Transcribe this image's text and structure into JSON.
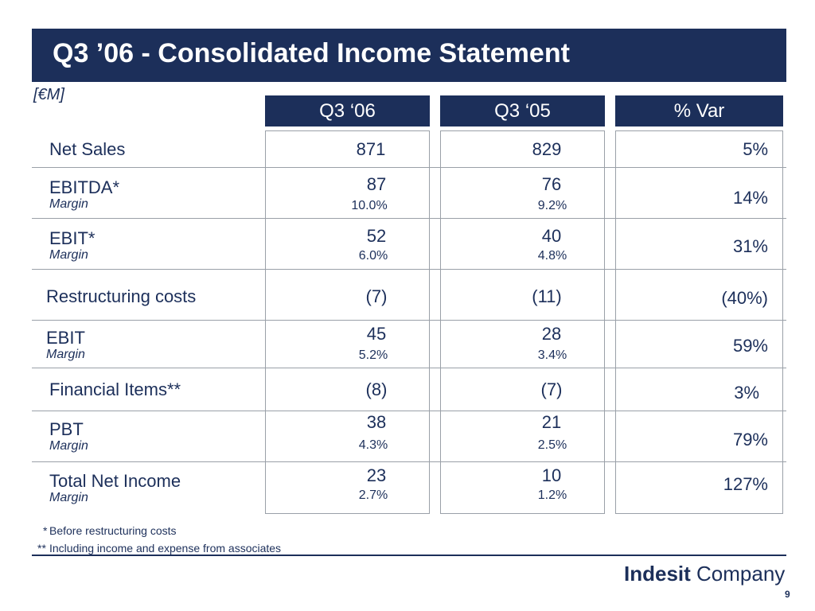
{
  "title": "Q3 ’06 - Consolidated Income Statement",
  "unit": "[€M]",
  "columns": {
    "q3_06": "Q3 ‘06",
    "q3_05": "Q3 ‘05",
    "var": "% Var"
  },
  "rows": [
    {
      "label": "Net Sales",
      "margin_label": "",
      "q3_06": "871",
      "q3_05": "829",
      "q3_06_margin": "",
      "q3_05_margin": "",
      "var": "5%"
    },
    {
      "label": "EBITDA*",
      "margin_label": "Margin",
      "q3_06": "87",
      "q3_05": "76",
      "q3_06_margin": "10.0%",
      "q3_05_margin": "9.2%",
      "var": "14%"
    },
    {
      "label": "EBIT*",
      "margin_label": "Margin",
      "q3_06": "52",
      "q3_05": "40",
      "q3_06_margin": "6.0%",
      "q3_05_margin": "4.8%",
      "var": "31%"
    },
    {
      "label": "Restructuring costs",
      "margin_label": "",
      "q3_06": "(7)",
      "q3_05": "(11)",
      "q3_06_margin": "",
      "q3_05_margin": "",
      "var": "(40%)"
    },
    {
      "label": "EBIT",
      "margin_label": "Margin",
      "q3_06": "45",
      "q3_05": "28",
      "q3_06_margin": "5.2%",
      "q3_05_margin": "3.4%",
      "var": "59%"
    },
    {
      "label": "Financial Items**",
      "margin_label": "",
      "q3_06": "(8)",
      "q3_05": "(7)",
      "q3_06_margin": "",
      "q3_05_margin": "",
      "var": "3%"
    },
    {
      "label": "PBT",
      "margin_label": "Margin",
      "q3_06": "38",
      "q3_05": "21",
      "q3_06_margin": "4.3%",
      "q3_05_margin": "2.5%",
      "var": "79%"
    },
    {
      "label": "Total Net Income",
      "margin_label": "Margin",
      "q3_06": "23",
      "q3_05": "10",
      "q3_06_margin": "2.7%",
      "q3_05_margin": "1.2%",
      "var": "127%"
    }
  ],
  "footnotes": {
    "note1_mark": "*",
    "note1_text": "Before restructuring costs",
    "note2_mark": "**",
    "note2_text": "Including income and expense from associates"
  },
  "logo": {
    "bold": "Indesit",
    "regular": " Company"
  },
  "page_number": "9",
  "colors": {
    "brand": "#1c2f5a",
    "border": "#9aa0a8"
  }
}
